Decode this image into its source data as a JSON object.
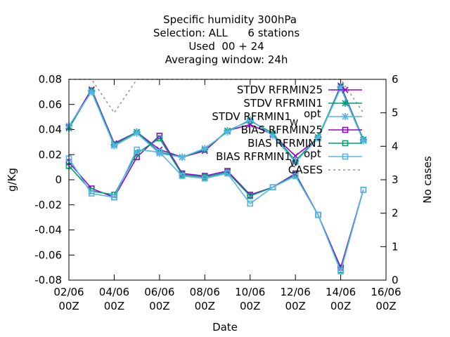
{
  "chart_data": {
    "type": "line",
    "title_lines": [
      "Specific humidity 300hPa",
      "Selection: ALL      6 stations",
      "Used  00 + 24",
      "Averaging window: 24h"
    ],
    "xlabel": "Date",
    "ylabel": "g/Kg",
    "y2label": "No cases",
    "x_ticks": [
      {
        "d": 2,
        "line1": "02/06",
        "line2": "00Z"
      },
      {
        "d": 4,
        "line1": "04/06",
        "line2": "00Z"
      },
      {
        "d": 6,
        "line1": "06/06",
        "line2": "00Z"
      },
      {
        "d": 8,
        "line1": "08/06",
        "line2": "00Z"
      },
      {
        "d": 10,
        "line1": "10/06",
        "line2": "00Z"
      },
      {
        "d": 12,
        "line1": "12/06",
        "line2": "00Z"
      },
      {
        "d": 14,
        "line1": "14/06",
        "line2": "00Z"
      },
      {
        "d": 16,
        "line1": "16/06",
        "line2": "00Z"
      }
    ],
    "xlim": [
      2,
      16
    ],
    "ylim": [
      -0.08,
      0.08
    ],
    "y_ticks": [
      "0.08",
      "0.06",
      "0.04",
      "0.02",
      "0",
      "-0.02",
      "-0.04",
      "-0.06",
      "-0.08"
    ],
    "y2lim": [
      0,
      6
    ],
    "y2_ticks": [
      "6",
      "5",
      "4",
      "3",
      "2",
      "1",
      "0"
    ],
    "x": [
      2,
      3,
      4,
      5,
      6,
      7,
      8,
      9,
      10,
      11,
      12,
      13,
      14,
      15
    ],
    "legend_position": "top-right",
    "series": [
      {
        "name": "STDV RFRMIN25",
        "color": "#9400d3",
        "marker": "x",
        "axis": "y1",
        "values": [
          0.042,
          0.072,
          0.029,
          0.038,
          0.024,
          0.018,
          0.023,
          0.039,
          0.044,
          0.036,
          0.019,
          0.033,
          0.075,
          0.032
        ]
      },
      {
        "name": "STDV RFRMIN1",
        "color": "#009e73",
        "marker": "star",
        "axis": "y1",
        "values": [
          0.041,
          0.071,
          0.028,
          0.038,
          0.022,
          0.018,
          0.024,
          0.039,
          0.047,
          0.037,
          0.015,
          0.034,
          0.074,
          0.032
        ]
      },
      {
        "name": "STDV RFRMIN1",
        "subscript": "W",
        "suffix": "opt",
        "color": "#56b4e9",
        "marker": "star",
        "axis": "y1",
        "values": [
          0.043,
          0.07,
          0.027,
          0.037,
          0.021,
          0.018,
          0.025,
          0.038,
          0.048,
          0.035,
          0.014,
          0.033,
          0.073,
          0.031
        ]
      },
      {
        "name": "BIAS RFRMIN25",
        "color": "#9400d3",
        "marker": "square",
        "axis": "y1",
        "values": [
          0.014,
          -0.007,
          -0.014,
          0.018,
          0.035,
          0.005,
          0.003,
          0.007,
          -0.012,
          -0.006,
          0.005,
          -0.028,
          -0.07,
          -0.008
        ]
      },
      {
        "name": "BIAS RFRMIN1",
        "color": "#009e73",
        "marker": "square",
        "axis": "y1",
        "values": [
          0.011,
          -0.009,
          -0.012,
          0.021,
          0.033,
          0.004,
          0.002,
          0.006,
          -0.013,
          -0.006,
          0.004,
          -0.028,
          -0.072,
          -0.008
        ]
      },
      {
        "name": "BIAS RFRMIN1",
        "subscript": "W",
        "suffix": "opt",
        "color": "#56b4e9",
        "marker": "square",
        "axis": "y1",
        "values": [
          0.017,
          -0.011,
          -0.014,
          0.024,
          0.022,
          0.003,
          0.001,
          0.005,
          -0.019,
          -0.006,
          0.003,
          -0.028,
          -0.073,
          -0.008
        ]
      },
      {
        "name": "CASES",
        "color": "#999999",
        "marker": "none",
        "dashed": true,
        "axis": "y2",
        "values": [
          6,
          6,
          5,
          6,
          6,
          6,
          6,
          6,
          6,
          6,
          6,
          6,
          6,
          5
        ]
      }
    ]
  }
}
